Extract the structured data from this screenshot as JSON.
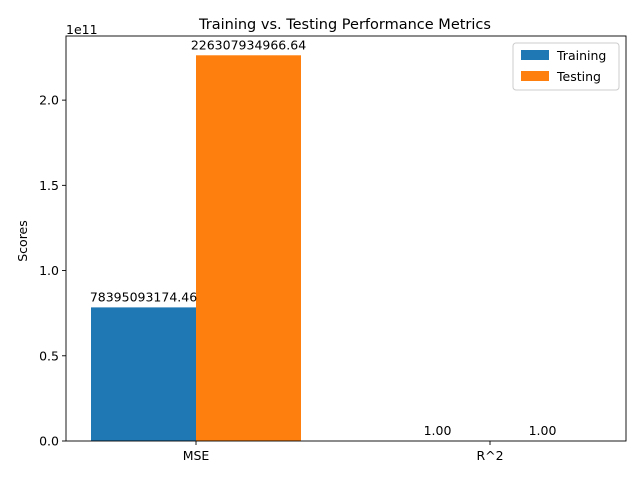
{
  "chart_data": {
    "type": "bar",
    "title": "Training vs. Testing Performance Metrics",
    "xlabel": "",
    "ylabel": "Scores",
    "y_scale_label": "1e11",
    "ylim": [
      0,
      237623000000
    ],
    "yticks": [
      {
        "value": 0,
        "label": "0.0"
      },
      {
        "value": 50000000000,
        "label": "0.5"
      },
      {
        "value": 100000000000,
        "label": "1.0"
      },
      {
        "value": 150000000000,
        "label": "1.5"
      },
      {
        "value": 200000000000,
        "label": "2.0"
      }
    ],
    "categories": [
      "MSE",
      "R^2"
    ],
    "series": [
      {
        "name": "Training",
        "color": "#1f77b4",
        "values": [
          78395093174.46,
          1.0
        ],
        "labels": [
          "78395093174.46",
          "1.00"
        ]
      },
      {
        "name": "Testing",
        "color": "#ff7f0e",
        "values": [
          226307934966.64,
          1.0
        ],
        "labels": [
          "226307934966.64",
          "1.00"
        ]
      }
    ],
    "legend": {
      "position": "top-right"
    },
    "grid": false
  }
}
